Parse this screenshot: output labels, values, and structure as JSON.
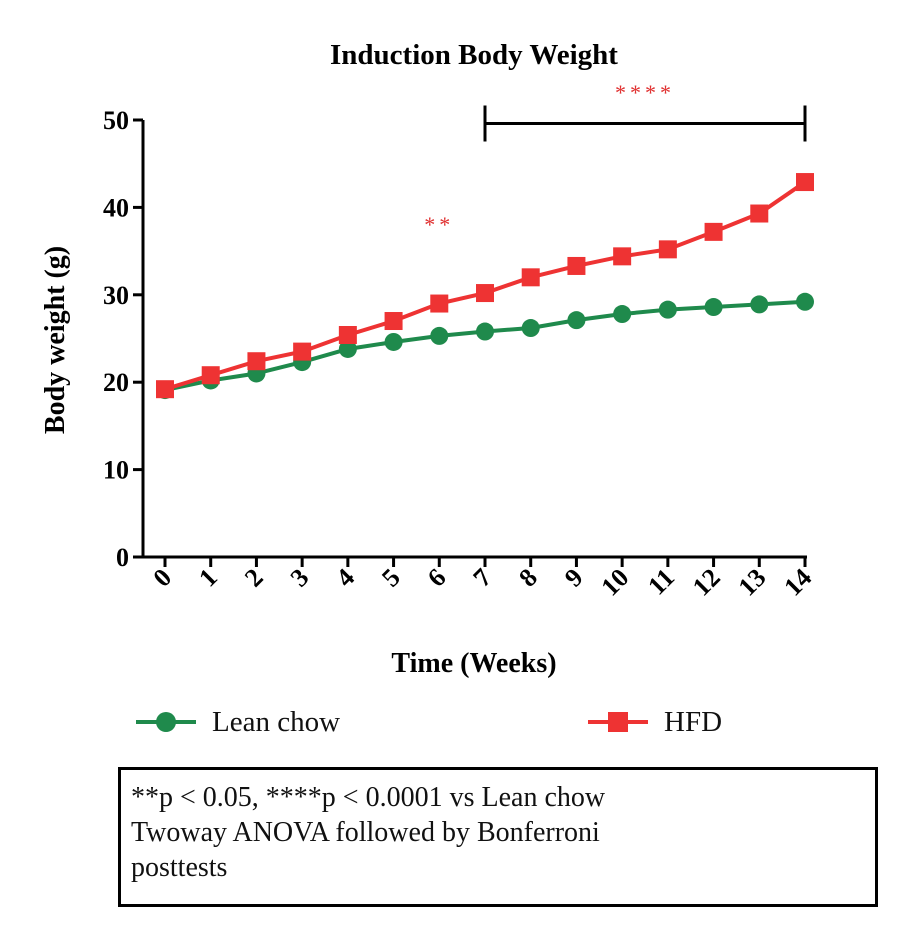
{
  "chart_data": {
    "type": "line",
    "title": "Induction Body Weight",
    "xlabel": "Time (Weeks)",
    "ylabel": "Body weight (g)",
    "x": [
      0,
      1,
      2,
      3,
      4,
      5,
      6,
      7,
      8,
      9,
      10,
      11,
      12,
      13,
      14
    ],
    "xlim": [
      0,
      14
    ],
    "ylim": [
      0,
      50
    ],
    "yticks": [
      0,
      10,
      20,
      30,
      40,
      50
    ],
    "grid": false,
    "legend_position": "bottom",
    "series": [
      {
        "name": "Lean chow",
        "color": "#1f8a4c",
        "marker": "circle",
        "values": [
          19.1,
          20.2,
          21.0,
          22.3,
          23.8,
          24.6,
          25.3,
          25.8,
          26.2,
          27.1,
          27.8,
          28.3,
          28.6,
          28.9,
          29.2
        ]
      },
      {
        "name": "HFD",
        "color": "#ee3333",
        "marker": "square",
        "values": [
          19.2,
          20.8,
          22.4,
          23.5,
          25.4,
          27.0,
          29.0,
          30.2,
          32.0,
          33.3,
          34.4,
          35.2,
          37.2,
          39.3,
          42.9
        ]
      }
    ],
    "annotations": [
      {
        "text": "**",
        "x": 6,
        "y": 37.2,
        "color": "#e03030"
      },
      {
        "text": "****",
        "x": 10.5,
        "y": 52.3,
        "color": "#e03030",
        "bracket": [
          7,
          14
        ],
        "bracket_y": 49.6
      }
    ]
  },
  "footnote": {
    "lines": [
      "**p < 0.05, ****p < 0.0001 vs Lean chow",
      "Twoway ANOVA followed by Bonferroni",
      "posttests"
    ]
  }
}
